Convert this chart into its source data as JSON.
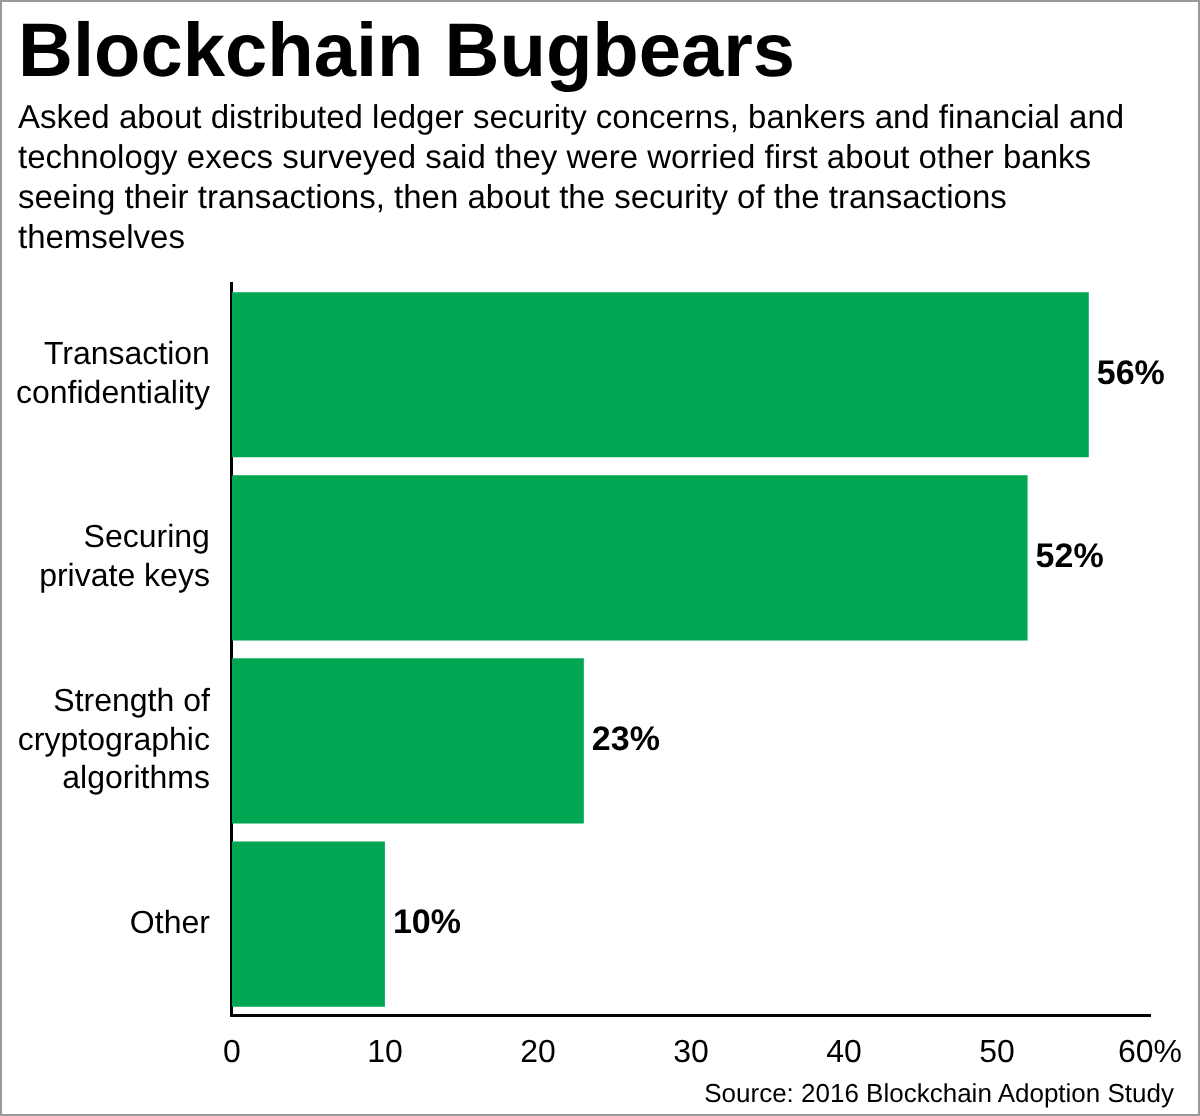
{
  "chart_data": {
    "type": "bar",
    "orientation": "horizontal",
    "title": "Blockchain Bugbears",
    "subtitle": "Asked about distributed ledger security concerns, bankers and financial and technology execs surveyed said they were worried first about other banks seeing their transactions, then about the security of the transactions themselves",
    "categories": [
      "Transaction confidentiality",
      "Securing private keys",
      "Strength of cryptographic algorithms",
      "Other"
    ],
    "values": [
      56,
      52,
      23,
      10
    ],
    "color": "#00a651",
    "value_labels": [
      "56%",
      "52%",
      "23%",
      "10%"
    ],
    "xlim": [
      0,
      60
    ],
    "xticks": [
      0,
      10,
      20,
      30,
      40,
      50,
      {
        "value": 60,
        "label": "60%"
      }
    ],
    "grid": false,
    "legend": false,
    "annotations": [
      "Source: 2016 Blockchain Adoption Study"
    ]
  }
}
